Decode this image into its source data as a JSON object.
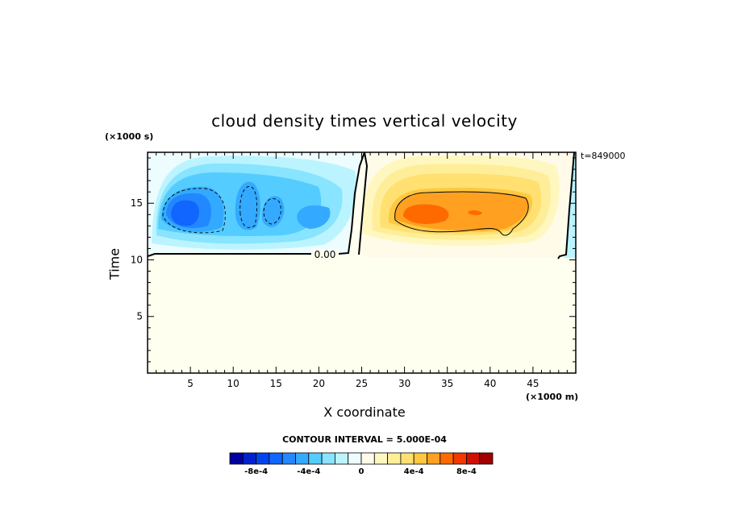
{
  "chart_data": {
    "type": "heatmap",
    "title": "cloud density times vertical velocity",
    "xlabel": "X coordinate",
    "ylabel": "Time",
    "x_multiplier_label": "(×1000 m)",
    "y_multiplier_label": "(×1000 s)",
    "timestamp": "t=849000",
    "xlim": [
      0,
      50
    ],
    "ylim": [
      0,
      19.5
    ],
    "x_ticks": [
      5,
      10,
      15,
      20,
      25,
      30,
      35,
      40,
      45
    ],
    "y_ticks": [
      5,
      10,
      15
    ],
    "contour_label": "0.00",
    "contour_interval_text": "CONTOUR INTERVAL = 5.000E-04",
    "colorbar": {
      "colors": [
        "#0000a0",
        "#0022cc",
        "#0044ee",
        "#1166ff",
        "#2288ff",
        "#33aaff",
        "#55ccff",
        "#88e4ff",
        "#bbf4ff",
        "#ecfcff",
        "#fffbe8",
        "#fff7c0",
        "#ffee99",
        "#ffe070",
        "#ffc840",
        "#ffa020",
        "#ff6a00",
        "#f03a00",
        "#d01000",
        "#a00000"
      ],
      "tick_labels": [
        "-8e-4",
        "-4e-4",
        "0",
        "4e-4",
        "8e-4"
      ]
    },
    "colors": {
      "background_fill": "#fffff0",
      "axis": "#000000"
    }
  }
}
